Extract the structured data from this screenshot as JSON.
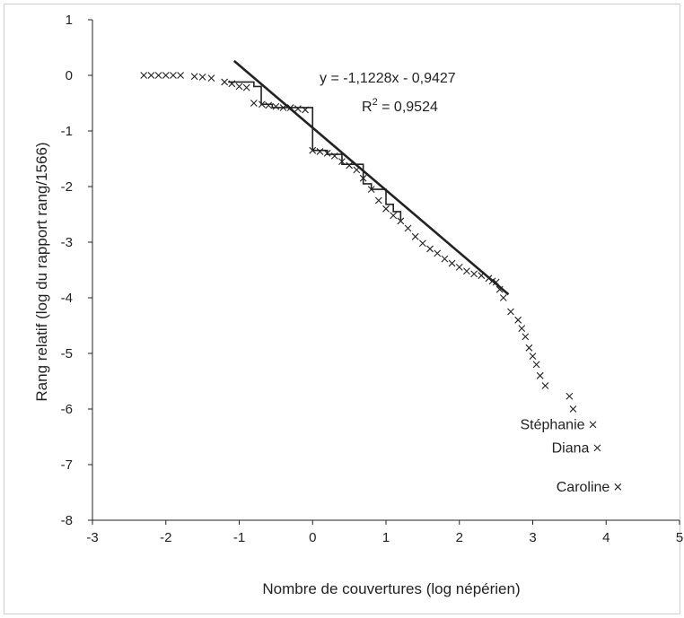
{
  "chart_data": {
    "type": "scatter",
    "title": "",
    "xlabel": "Nombre de couvertures (log népérien)",
    "ylabel": "Rang relatif (log du rapport rang/1566)",
    "xlim": [
      -3,
      5
    ],
    "ylim": [
      -8,
      1
    ],
    "xticks": [
      "-3",
      "-2",
      "-1",
      "0",
      "1",
      "2",
      "3",
      "4",
      "5"
    ],
    "yticks": [
      "1",
      "0",
      "-1",
      "-2",
      "-3",
      "-4",
      "-5",
      "-6",
      "-7",
      "-8"
    ],
    "grid": false,
    "legend": "none",
    "color": "#222222",
    "series": [
      {
        "marker": "x",
        "x": [
          -2.3,
          -2.2,
          -2.1,
          -2.0,
          -1.9,
          -1.8,
          -1.61,
          -1.5,
          -1.38,
          -1.2,
          -1.1,
          -1.0,
          -0.9,
          -0.8,
          -0.69,
          -0.6,
          -0.5,
          -0.4,
          -0.3,
          -0.2,
          -0.1,
          0.0,
          0.1,
          0.2,
          0.3,
          0.4,
          0.5,
          0.6,
          0.69,
          0.8,
          0.9,
          1.0,
          1.1,
          1.2,
          1.3,
          1.4,
          1.5,
          1.6,
          1.7,
          1.8,
          1.9,
          2.0,
          2.1,
          2.2,
          2.3,
          2.4,
          2.45,
          2.5,
          2.55,
          2.6,
          2.7,
          2.8,
          2.85,
          2.9,
          2.95,
          3.0,
          3.05,
          3.1,
          3.17,
          3.5,
          3.55,
          3.82,
          3.88,
          4.16
        ],
        "y": [
          0.0,
          0.0,
          0.0,
          0.0,
          0.0,
          0.0,
          -0.02,
          -0.03,
          -0.05,
          -0.12,
          -0.15,
          -0.2,
          -0.22,
          -0.5,
          -0.52,
          -0.54,
          -0.56,
          -0.58,
          -0.58,
          -0.6,
          -0.62,
          -1.35,
          -1.37,
          -1.4,
          -1.45,
          -1.55,
          -1.62,
          -1.7,
          -1.85,
          -2.05,
          -2.25,
          -2.4,
          -2.52,
          -2.62,
          -2.75,
          -2.9,
          -3.02,
          -3.12,
          -3.2,
          -3.3,
          -3.38,
          -3.45,
          -3.52,
          -3.57,
          -3.6,
          -3.65,
          -3.7,
          -3.72,
          -3.85,
          -4.0,
          -4.25,
          -4.4,
          -4.55,
          -4.7,
          -4.9,
          -5.05,
          -5.2,
          -5.4,
          -5.58,
          -5.77,
          -6.0,
          -6.28,
          -6.7,
          -7.4
        ]
      },
      {
        "marker": "step-line",
        "x": [
          -1.15,
          -0.8,
          -0.7,
          -0.55,
          0.0,
          0.2,
          0.4,
          0.69,
          0.8,
          1.0,
          1.1,
          1.2
        ],
        "y": [
          -0.12,
          -0.2,
          -0.52,
          -0.58,
          -1.35,
          -1.42,
          -1.6,
          -1.95,
          -2.05,
          -2.32,
          -2.45,
          -2.6
        ]
      }
    ],
    "trendline": {
      "x": [
        -1.07,
        2.67
      ],
      "y": [
        0.26,
        -3.94
      ]
    },
    "annotations": {
      "equation": "y = -1,1228x - 0,9427",
      "r2_prefix": "R",
      "r2_exp": "2",
      "r2_value": " = 0,9524"
    },
    "labels": [
      {
        "text": "Stéphanie",
        "x": 3.82,
        "y": -6.28
      },
      {
        "text": "Diana",
        "x": 3.88,
        "y": -6.7
      },
      {
        "text": "Caroline",
        "x": 4.16,
        "y": -7.4
      }
    ]
  }
}
